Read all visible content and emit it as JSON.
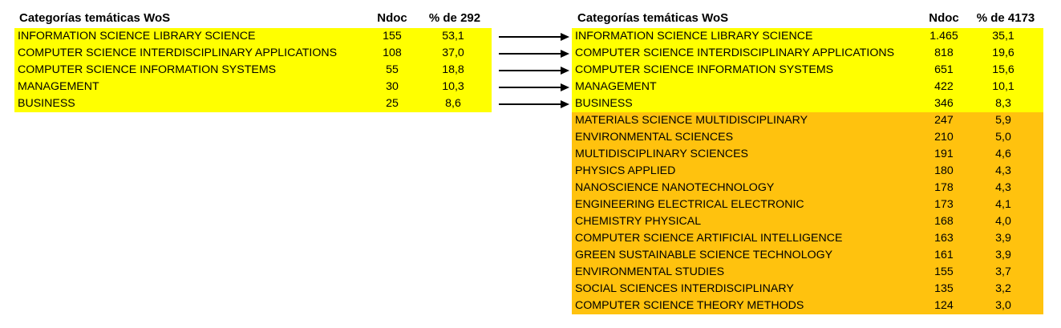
{
  "colors": {
    "highlight_yellow": "#ffff00",
    "highlight_orange": "#ffc20e",
    "arrow": "#000000"
  },
  "left_table": {
    "headers": {
      "category": "Categorías temáticas WoS",
      "ndoc": "Ndoc",
      "pct": "% de 292"
    },
    "rows": [
      {
        "category": "INFORMATION SCIENCE LIBRARY SCIENCE",
        "ndoc": "155",
        "pct": "53,1"
      },
      {
        "category": "COMPUTER SCIENCE INTERDISCIPLINARY APPLICATIONS",
        "ndoc": "108",
        "pct": "37,0"
      },
      {
        "category": "COMPUTER SCIENCE INFORMATION SYSTEMS",
        "ndoc": "55",
        "pct": "18,8"
      },
      {
        "category": "MANAGEMENT",
        "ndoc": "30",
        "pct": "10,3"
      },
      {
        "category": "BUSINESS",
        "ndoc": "25",
        "pct": "8,6"
      }
    ]
  },
  "right_table": {
    "headers": {
      "category": "Categorías temáticas WoS",
      "ndoc": "Ndoc",
      "pct": "% de 4173"
    },
    "rows": [
      {
        "category": "INFORMATION SCIENCE LIBRARY SCIENCE",
        "ndoc": "1.465",
        "pct": "35,1",
        "highlight": "yellow"
      },
      {
        "category": "COMPUTER SCIENCE INTERDISCIPLINARY APPLICATIONS",
        "ndoc": "818",
        "pct": "19,6",
        "highlight": "yellow"
      },
      {
        "category": "COMPUTER SCIENCE INFORMATION SYSTEMS",
        "ndoc": "651",
        "pct": "15,6",
        "highlight": "yellow"
      },
      {
        "category": "MANAGEMENT",
        "ndoc": "422",
        "pct": "10,1",
        "highlight": "yellow"
      },
      {
        "category": "BUSINESS",
        "ndoc": "346",
        "pct": "8,3",
        "highlight": "yellow"
      },
      {
        "category": "MATERIALS SCIENCE MULTIDISCIPLINARY",
        "ndoc": "247",
        "pct": "5,9",
        "highlight": "orange"
      },
      {
        "category": "ENVIRONMENTAL SCIENCES",
        "ndoc": "210",
        "pct": "5,0",
        "highlight": "orange"
      },
      {
        "category": "MULTIDISCIPLINARY SCIENCES",
        "ndoc": "191",
        "pct": "4,6",
        "highlight": "orange"
      },
      {
        "category": "PHYSICS APPLIED",
        "ndoc": "180",
        "pct": "4,3",
        "highlight": "orange"
      },
      {
        "category": "NANOSCIENCE NANOTECHNOLOGY",
        "ndoc": "178",
        "pct": "4,3",
        "highlight": "orange"
      },
      {
        "category": "ENGINEERING ELECTRICAL ELECTRONIC",
        "ndoc": "173",
        "pct": "4,1",
        "highlight": "orange"
      },
      {
        "category": "CHEMISTRY PHYSICAL",
        "ndoc": "168",
        "pct": "4,0",
        "highlight": "orange"
      },
      {
        "category": "COMPUTER SCIENCE ARTIFICIAL INTELLIGENCE",
        "ndoc": "163",
        "pct": "3,9",
        "highlight": "orange"
      },
      {
        "category": "GREEN SUSTAINABLE SCIENCE TECHNOLOGY",
        "ndoc": "161",
        "pct": "3,9",
        "highlight": "orange"
      },
      {
        "category": "ENVIRONMENTAL STUDIES",
        "ndoc": "155",
        "pct": "3,7",
        "highlight": "orange"
      },
      {
        "category": "SOCIAL SCIENCES INTERDISCIPLINARY",
        "ndoc": "135",
        "pct": "3,2",
        "highlight": "orange"
      },
      {
        "category": "COMPUTER SCIENCE THEORY METHODS",
        "ndoc": "124",
        "pct": "3,0",
        "highlight": "orange"
      }
    ]
  }
}
